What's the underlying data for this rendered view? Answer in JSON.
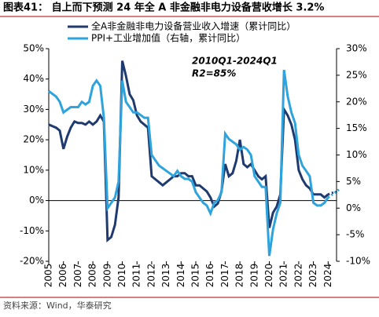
{
  "chart_data": {
    "type": "line",
    "title": "图表41：  自上而下预测 24 年全 A 非金融非电力设备营收增长 3.2%",
    "source": "资料来源：Wind，华泰研究",
    "annotations": [
      "2010Q1-2024Q1",
      "R2=85%"
    ],
    "x": [
      2005,
      2005.25,
      2005.5,
      2005.75,
      2006,
      2006.25,
      2006.5,
      2006.75,
      2007,
      2007.25,
      2007.5,
      2007.75,
      2008,
      2008.25,
      2008.5,
      2008.75,
      2009,
      2009.25,
      2009.5,
      2009.75,
      2010,
      2010.25,
      2010.5,
      2010.75,
      2011,
      2011.25,
      2011.5,
      2011.75,
      2012,
      2012.25,
      2012.5,
      2012.75,
      2013,
      2013.25,
      2013.5,
      2013.75,
      2014,
      2014.25,
      2014.5,
      2014.75,
      2015,
      2015.25,
      2015.5,
      2015.75,
      2016,
      2016.25,
      2016.5,
      2016.75,
      2017,
      2017.25,
      2017.5,
      2017.75,
      2018,
      2018.25,
      2018.5,
      2018.75,
      2019,
      2019.25,
      2019.5,
      2019.75,
      2020,
      2020.25,
      2020.5,
      2020.75,
      2021,
      2021.25,
      2021.5,
      2021.75,
      2022,
      2022.25,
      2022.5,
      2022.75,
      2023,
      2023.25,
      2023.5,
      2023.75,
      2024,
      2024.25,
      2024.5,
      2024.75
    ],
    "series": [
      {
        "name": "全A非金融非电力设备营业收入增速（累计同比）",
        "color": "#1f3a6e",
        "axis": "y",
        "values": [
          25,
          24.5,
          24,
          23,
          17,
          21,
          24,
          26,
          25.5,
          25.5,
          25,
          26,
          25,
          26,
          28,
          26,
          -13,
          -12,
          -8,
          1,
          46,
          41,
          35,
          33,
          28,
          26,
          25,
          24,
          8,
          7,
          6,
          5,
          6,
          7,
          8,
          8,
          9,
          9,
          8,
          8,
          5,
          5,
          4,
          3,
          1,
          -2,
          -1,
          3,
          12,
          8,
          9,
          13,
          20,
          12,
          11,
          12,
          10,
          8,
          7,
          8,
          -9,
          -4,
          -2,
          2,
          30,
          28,
          25,
          20,
          10,
          7,
          5,
          4,
          2,
          2,
          2,
          1,
          2,
          null,
          null,
          null
        ],
        "forecast": [
          null,
          null,
          null,
          null,
          null,
          null,
          null,
          null,
          null,
          null,
          null,
          null,
          null,
          null,
          null,
          null,
          null,
          null,
          null,
          null,
          null,
          null,
          null,
          null,
          null,
          null,
          null,
          null,
          null,
          null,
          null,
          null,
          null,
          null,
          null,
          null,
          null,
          null,
          null,
          null,
          null,
          null,
          null,
          null,
          null,
          null,
          null,
          null,
          null,
          null,
          null,
          null,
          null,
          null,
          null,
          null,
          null,
          null,
          null,
          null,
          null,
          null,
          null,
          null,
          null,
          null,
          null,
          null,
          null,
          null,
          null,
          null,
          null,
          null,
          null,
          null,
          2,
          2.5,
          2.8,
          3.2
        ]
      },
      {
        "name": "PPI+工业增加值（右轴，累计同比）",
        "color": "#2ea3dc",
        "axis": "y2",
        "values": [
          22,
          21.5,
          21,
          20,
          18,
          18.5,
          19,
          19,
          19,
          20,
          19.5,
          20,
          23,
          24,
          23,
          17,
          0,
          1,
          2,
          5,
          24,
          20,
          19,
          18,
          18,
          17.5,
          17,
          17,
          10,
          9,
          8,
          7.5,
          7,
          6.5,
          6,
          7,
          6,
          5.5,
          5.5,
          5,
          3,
          2,
          1,
          0.5,
          -1,
          1,
          1.5,
          3,
          14,
          13,
          12.5,
          12,
          11,
          11.5,
          11,
          10,
          6,
          5,
          4,
          4,
          -9,
          -4,
          -1,
          1,
          26,
          21,
          18,
          16,
          10,
          8,
          7,
          6,
          1,
          0.5,
          0.5,
          1,
          2,
          null,
          null,
          null
        ],
        "forecast": [
          null,
          null,
          null,
          null,
          null,
          null,
          null,
          null,
          null,
          null,
          null,
          null,
          null,
          null,
          null,
          null,
          null,
          null,
          null,
          null,
          null,
          null,
          null,
          null,
          null,
          null,
          null,
          null,
          null,
          null,
          null,
          null,
          null,
          null,
          null,
          null,
          null,
          null,
          null,
          null,
          null,
          null,
          null,
          null,
          null,
          null,
          null,
          null,
          null,
          null,
          null,
          null,
          null,
          null,
          null,
          null,
          null,
          null,
          null,
          null,
          null,
          null,
          null,
          null,
          null,
          null,
          null,
          null,
          null,
          null,
          null,
          null,
          null,
          null,
          null,
          null,
          2,
          2.5,
          3,
          3.5
        ]
      }
    ],
    "xlim": [
      2005,
      2025
    ],
    "xticks": [
      2005,
      2006,
      2007,
      2008,
      2009,
      2010,
      2011,
      2012,
      2013,
      2014,
      2015,
      2016,
      2017,
      2018,
      2019,
      2020,
      2021,
      2022,
      2023,
      2024
    ],
    "ylim": [
      -20,
      50
    ],
    "yticks": [
      {
        "value": -20,
        "label": "-20%"
      },
      {
        "value": -10,
        "label": "-10%"
      },
      {
        "value": 0,
        "label": "0%"
      },
      {
        "value": 10,
        "label": "10%"
      },
      {
        "value": 20,
        "label": "20%"
      },
      {
        "value": 30,
        "label": "30%"
      },
      {
        "value": 40,
        "label": "40%"
      },
      {
        "value": 50,
        "label": "50%"
      }
    ],
    "y2lim": [
      -10,
      30
    ],
    "y2ticks": [
      {
        "value": -10,
        "label": "-10%"
      },
      {
        "value": -5,
        "label": "-5%"
      },
      {
        "value": 0,
        "label": "0%"
      },
      {
        "value": 5,
        "label": "5%"
      },
      {
        "value": 10,
        "label": "10%"
      },
      {
        "value": 15,
        "label": "15%"
      },
      {
        "value": 20,
        "label": "20%"
      },
      {
        "value": 25,
        "label": "25%"
      },
      {
        "value": 30,
        "label": "30%"
      }
    ]
  }
}
